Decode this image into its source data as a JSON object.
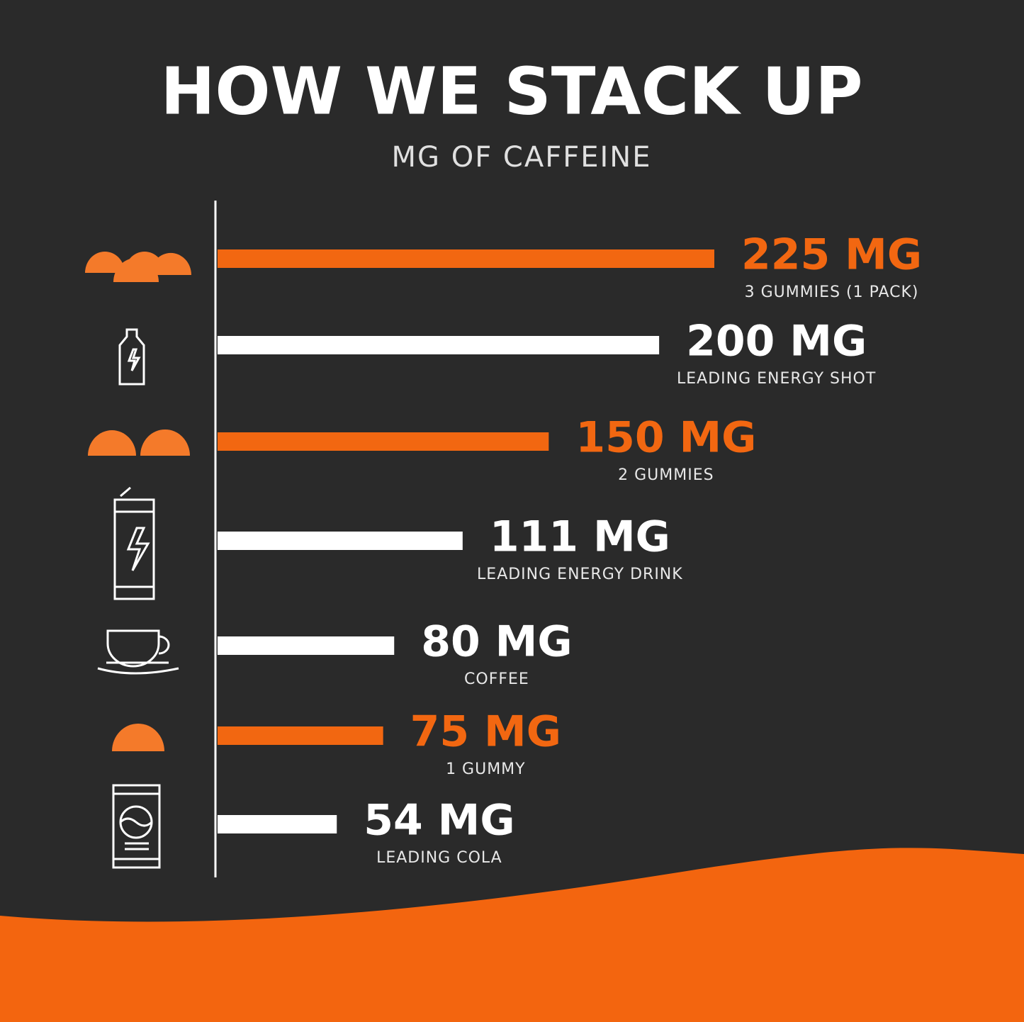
{
  "chart_data": {
    "type": "bar",
    "orientation": "horizontal",
    "title": "HOW WE STACK UP",
    "subtitle": "MG OF CAFFEINE",
    "categories": [
      "3 GUMMIES (1 PACK)",
      "LEADING ENERGY SHOT",
      "2 GUMMIES",
      "LEADING ENERGY DRINK",
      "COFFEE",
      "1 GUMMY",
      "LEADING COLA"
    ],
    "values": [
      225,
      200,
      150,
      111,
      80,
      75,
      54
    ],
    "value_labels": [
      "225 MG",
      "200 MG",
      "150 MG",
      "111 MG",
      "80 MG",
      "75 MG",
      "54 MG"
    ],
    "colors": [
      "#f26711",
      "#ffffff",
      "#f26711",
      "#ffffff",
      "#ffffff",
      "#f26711",
      "#ffffff"
    ]
  }
}
